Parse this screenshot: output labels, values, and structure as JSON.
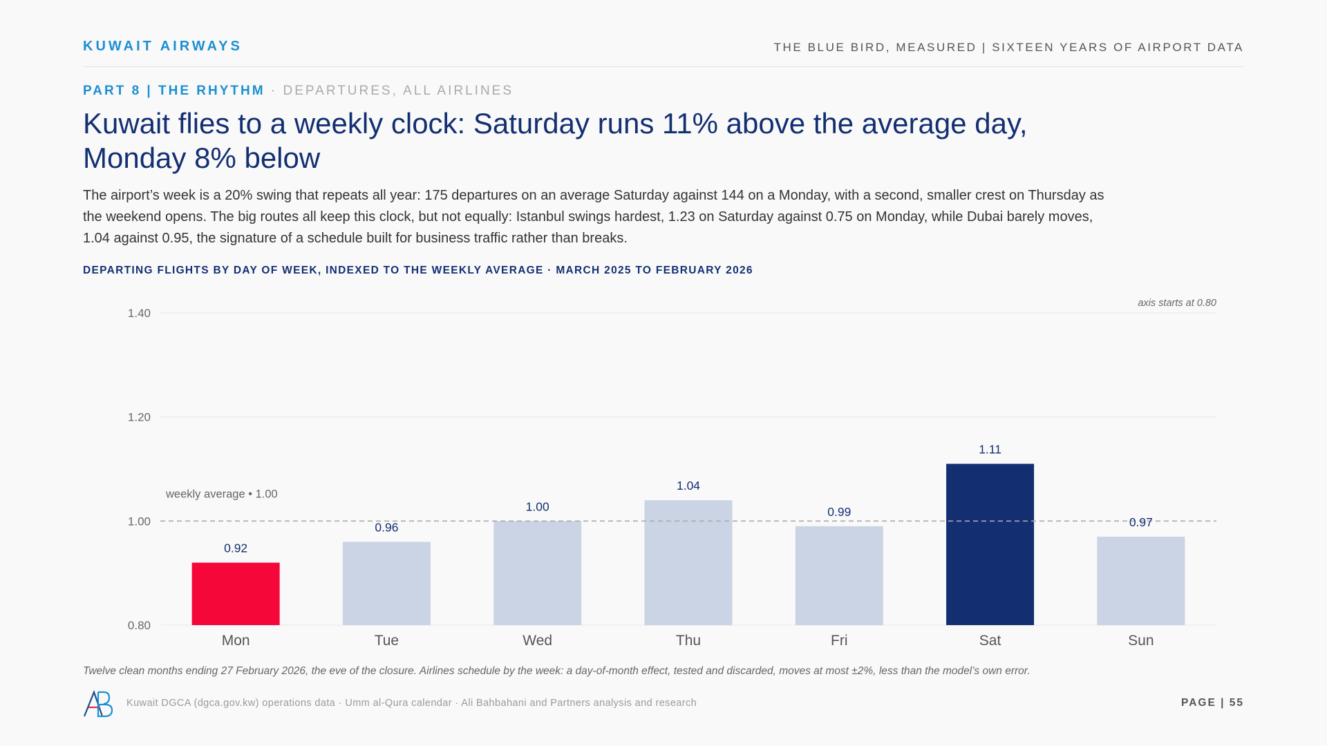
{
  "header": {
    "brand": "KUWAIT AIRWAYS",
    "series_title": "THE BLUE BIRD, MEASURED | SIXTEEN YEARS OF AIRPORT DATA"
  },
  "eyebrow": {
    "part": "PART 8 | THE RHYTHM",
    "separator": " · ",
    "sub": "DEPARTURES, ALL AIRLINES"
  },
  "headline": "Kuwait flies to a weekly clock: Saturday runs 11% above the average day, Monday 8% below",
  "deck": "The airport’s week is a 20% swing that repeats all year: 175 departures on an average Saturday against 144 on a Monday, with a second, smaller crest on Thursday as the weekend opens. The big routes all keep this clock, but not equally: Istanbul swings hardest, 1.23 on Saturday against 0.75 on Monday, while Dubai barely moves, 1.04 against 0.95, the signature of a schedule built for business traffic rather than breaks.",
  "chart_data": {
    "type": "bar",
    "title": "DEPARTING FLIGHTS BY DAY OF WEEK, INDEXED TO THE WEEKLY AVERAGE · MARCH 2025 TO FEBRUARY 2026",
    "categories": [
      "Mon",
      "Tue",
      "Wed",
      "Thu",
      "Fri",
      "Sat",
      "Sun"
    ],
    "values": [
      0.92,
      0.96,
      1.0,
      1.04,
      0.99,
      1.11,
      0.97
    ],
    "value_labels": [
      "0.92",
      "0.96",
      "1.00",
      "1.04",
      "0.99",
      "1.11",
      "0.97"
    ],
    "bar_colors": [
      "#f5073a",
      "#cbd4e4",
      "#cbd4e4",
      "#cbd4e4",
      "#cbd4e4",
      "#132f72",
      "#cbd4e4"
    ],
    "ylim": [
      0.8,
      1.4
    ],
    "yticks": [
      0.8,
      1.0,
      1.2,
      1.4
    ],
    "ytick_labels": [
      "0.80",
      "1.00",
      "1.20",
      "1.40"
    ],
    "reference_line": {
      "value": 1.0,
      "label": "weekly average • 1.00"
    },
    "axis_note": "axis starts at 0.80",
    "grid": true,
    "label_color": "#132f72",
    "reference_color": "#aaaaaa"
  },
  "footnote": "Twelve clean months ending 27 February 2026, the eve of the closure. Airlines schedule by the week: a day-of-month effect, tested and discarded, moves at most ±2%, less than the model’s own error.",
  "footer": {
    "source": "Kuwait DGCA (dgca.gov.kw) operations data · Umm al-Qura calendar · Ali Bahbahani and Partners analysis and research",
    "page_label": "PAGE | ",
    "page_number": "55",
    "logo_text": "AB"
  }
}
